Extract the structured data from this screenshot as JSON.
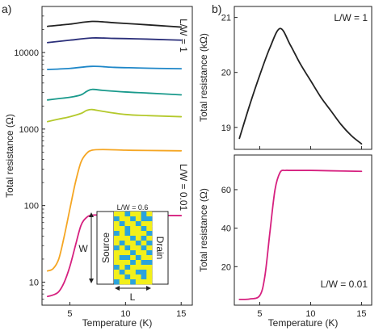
{
  "panels": {
    "a_label": "a)",
    "b_label": "b)"
  },
  "chart_data": [
    {
      "id": "a",
      "type": "line",
      "yscale": "log",
      "xlabel": "Temperature (K)",
      "ylabel": "Total resistance (Ω)",
      "xlim": [
        2.5,
        16
      ],
      "ylim": [
        5,
        40000
      ],
      "xticks": [
        "5",
        "10",
        "15"
      ],
      "xtick_values": [
        5,
        10,
        15
      ],
      "yticks": [
        "10",
        "100",
        "1000",
        "10000"
      ],
      "ytick_values": [
        10,
        100,
        1000,
        10000
      ],
      "annotations": {
        "top": "L/W = 1",
        "bottom": "L/W = 0.01"
      },
      "series": [
        {
          "color": "#222222",
          "x": [
            3,
            5,
            7,
            9,
            11,
            13,
            15
          ],
          "y": [
            22000,
            23500,
            25500,
            24500,
            23500,
            22500,
            21500
          ]
        },
        {
          "color": "#2b2f7a",
          "x": [
            3,
            5,
            7,
            9,
            11,
            13,
            15
          ],
          "y": [
            13500,
            14500,
            15500,
            15300,
            15100,
            14800,
            14500
          ]
        },
        {
          "color": "#1f87c8",
          "x": [
            3,
            5,
            7,
            9,
            11,
            13,
            15
          ],
          "y": [
            6000,
            6200,
            6600,
            6400,
            6300,
            6200,
            6150
          ]
        },
        {
          "color": "#1a9a8c",
          "x": [
            3,
            4,
            5,
            6,
            6.5,
            7,
            8,
            10,
            12,
            15
          ],
          "y": [
            2400,
            2500,
            2600,
            2800,
            3100,
            3300,
            3200,
            3050,
            2950,
            2800
          ]
        },
        {
          "color": "#b4c92c",
          "x": [
            3,
            4,
            5,
            6,
            6.5,
            7,
            8,
            10,
            12,
            15
          ],
          "y": [
            1250,
            1350,
            1450,
            1600,
            1750,
            1800,
            1700,
            1550,
            1500,
            1450
          ]
        },
        {
          "color": "#f5a623",
          "x": [
            3,
            3.5,
            4,
            4.5,
            5,
            5.5,
            6,
            6.5,
            7,
            8,
            10,
            12,
            15
          ],
          "y": [
            14,
            15,
            20,
            40,
            90,
            200,
            370,
            480,
            530,
            540,
            530,
            525,
            520
          ]
        },
        {
          "color": "#d6207f",
          "x": [
            3,
            3.5,
            4,
            4.5,
            5,
            5.5,
            6,
            6.5,
            7,
            8,
            10,
            12,
            15
          ],
          "y": [
            6.5,
            6.8,
            7.5,
            10,
            16,
            30,
            55,
            70,
            75,
            75,
            75,
            74.5,
            74
          ]
        }
      ],
      "inset": {
        "title": "L/W = 0.6",
        "source_label": "Source",
        "drain_label": "Drain",
        "w_label": "W",
        "l_label": "L",
        "colors": {
          "yellow": "#f2ef1a",
          "blue": "#2aa3dc"
        },
        "grid": [
          "0010010",
          "1001011",
          "0100100",
          "0010010",
          "1010001",
          "0001010",
          "0100101",
          "1010010",
          "0001001",
          "0110100",
          "0001011",
          "1010000",
          "0100110",
          "0010010",
          "1001000"
        ]
      }
    },
    {
      "id": "b_top",
      "type": "line",
      "xlim": [
        2.5,
        16
      ],
      "ylim": [
        18.6,
        21.2
      ],
      "yticks": [
        "19",
        "20",
        "21"
      ],
      "ytick_values": [
        19,
        20,
        21
      ],
      "ylabel": "Total resistance (kΩ)",
      "annotation": "L/W = 1",
      "series": [
        {
          "color": "#222222",
          "x": [
            3,
            4,
            5,
            6,
            7,
            8,
            9,
            10,
            11,
            12,
            13,
            14,
            15
          ],
          "y": [
            18.8,
            19.4,
            19.95,
            20.45,
            20.8,
            20.5,
            20.15,
            19.85,
            19.55,
            19.3,
            19.05,
            18.85,
            18.7
          ]
        }
      ]
    },
    {
      "id": "b_bottom",
      "type": "line",
      "xlabel": "Temperature (K)",
      "ylabel": "Total resistance (Ω)",
      "xlim": [
        2.5,
        16
      ],
      "ylim": [
        0,
        78
      ],
      "xticks": [
        "5",
        "10",
        "15"
      ],
      "xtick_values": [
        5,
        10,
        15
      ],
      "yticks": [
        "20",
        "40",
        "60"
      ],
      "ytick_values": [
        20,
        40,
        60
      ],
      "annotation": "L/W = 0.01",
      "series": [
        {
          "color": "#d6207f",
          "x": [
            3,
            4,
            5,
            5.5,
            6,
            6.5,
            7,
            7.5,
            8,
            10,
            12,
            15
          ],
          "y": [
            3,
            3.2,
            5,
            15,
            38,
            60,
            69,
            70,
            70,
            70,
            69.8,
            69.5
          ]
        }
      ]
    }
  ]
}
